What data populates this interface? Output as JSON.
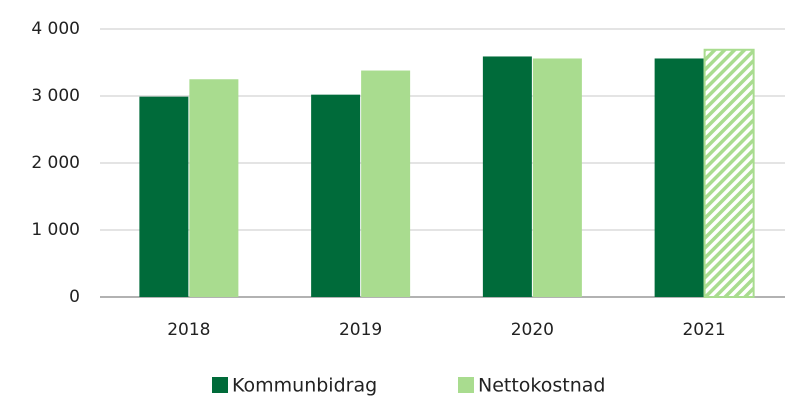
{
  "chart_data": {
    "type": "bar",
    "categories": [
      "2018",
      "2019",
      "2020",
      "2021"
    ],
    "series": [
      {
        "name": "Kommunbidrag",
        "color": "#006b3a",
        "values": [
          2990,
          3020,
          3590,
          3560
        ]
      },
      {
        "name": "Nettokostnad",
        "color": "#a9dc8f",
        "values": [
          3250,
          3380,
          3560,
          3690
        ],
        "hatched": [
          false,
          false,
          false,
          true
        ]
      }
    ],
    "ylim": [
      0,
      4000
    ],
    "yticks": [
      0,
      {
        "value": 1000,
        "label": "1 000"
      },
      {
        "value": 2000,
        "label": "2 000"
      },
      {
        "value": 3000,
        "label": "3 000"
      },
      {
        "value": 4000,
        "label": "4 000"
      }
    ],
    "grid": true,
    "legend": "bottom"
  }
}
